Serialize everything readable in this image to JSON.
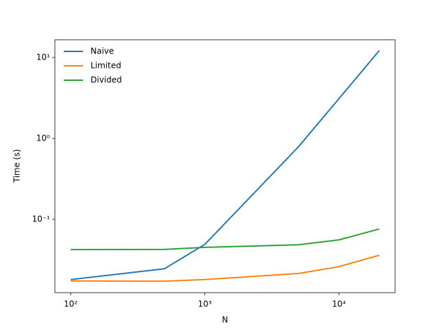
{
  "chart_data": {
    "type": "line",
    "x_label": "N",
    "y_label": "Time (s)",
    "x": [
      100,
      500,
      1000,
      5000,
      10000,
      20000
    ],
    "series": [
      {
        "name": "Naive",
        "color": "#1f77b4",
        "values": [
          0.018,
          0.0245,
          0.049,
          0.79,
          3.1,
          12.2
        ]
      },
      {
        "name": "Limited",
        "color": "#ff7f0e",
        "values": [
          0.0173,
          0.0172,
          0.018,
          0.0214,
          0.026,
          0.036
        ]
      },
      {
        "name": "Divided",
        "color": "#2ca02c",
        "values": [
          0.0423,
          0.0425,
          0.045,
          0.0485,
          0.0557,
          0.076
        ]
      }
    ],
    "xscale": "log",
    "yscale": "log",
    "xlim": [
      76.2,
      26250
    ],
    "ylim": [
      0.0124,
      16.6
    ],
    "xticks": [
      {
        "value": 100,
        "label": "10²"
      },
      {
        "value": 1000,
        "label": "10³"
      },
      {
        "value": 10000,
        "label": "10⁴"
      }
    ],
    "yticks": [
      {
        "value": 0.1,
        "label": "10⁻¹"
      },
      {
        "value": 1,
        "label": "10⁰"
      },
      {
        "value": 10,
        "label": "10¹"
      }
    ],
    "legend": "upper left"
  }
}
